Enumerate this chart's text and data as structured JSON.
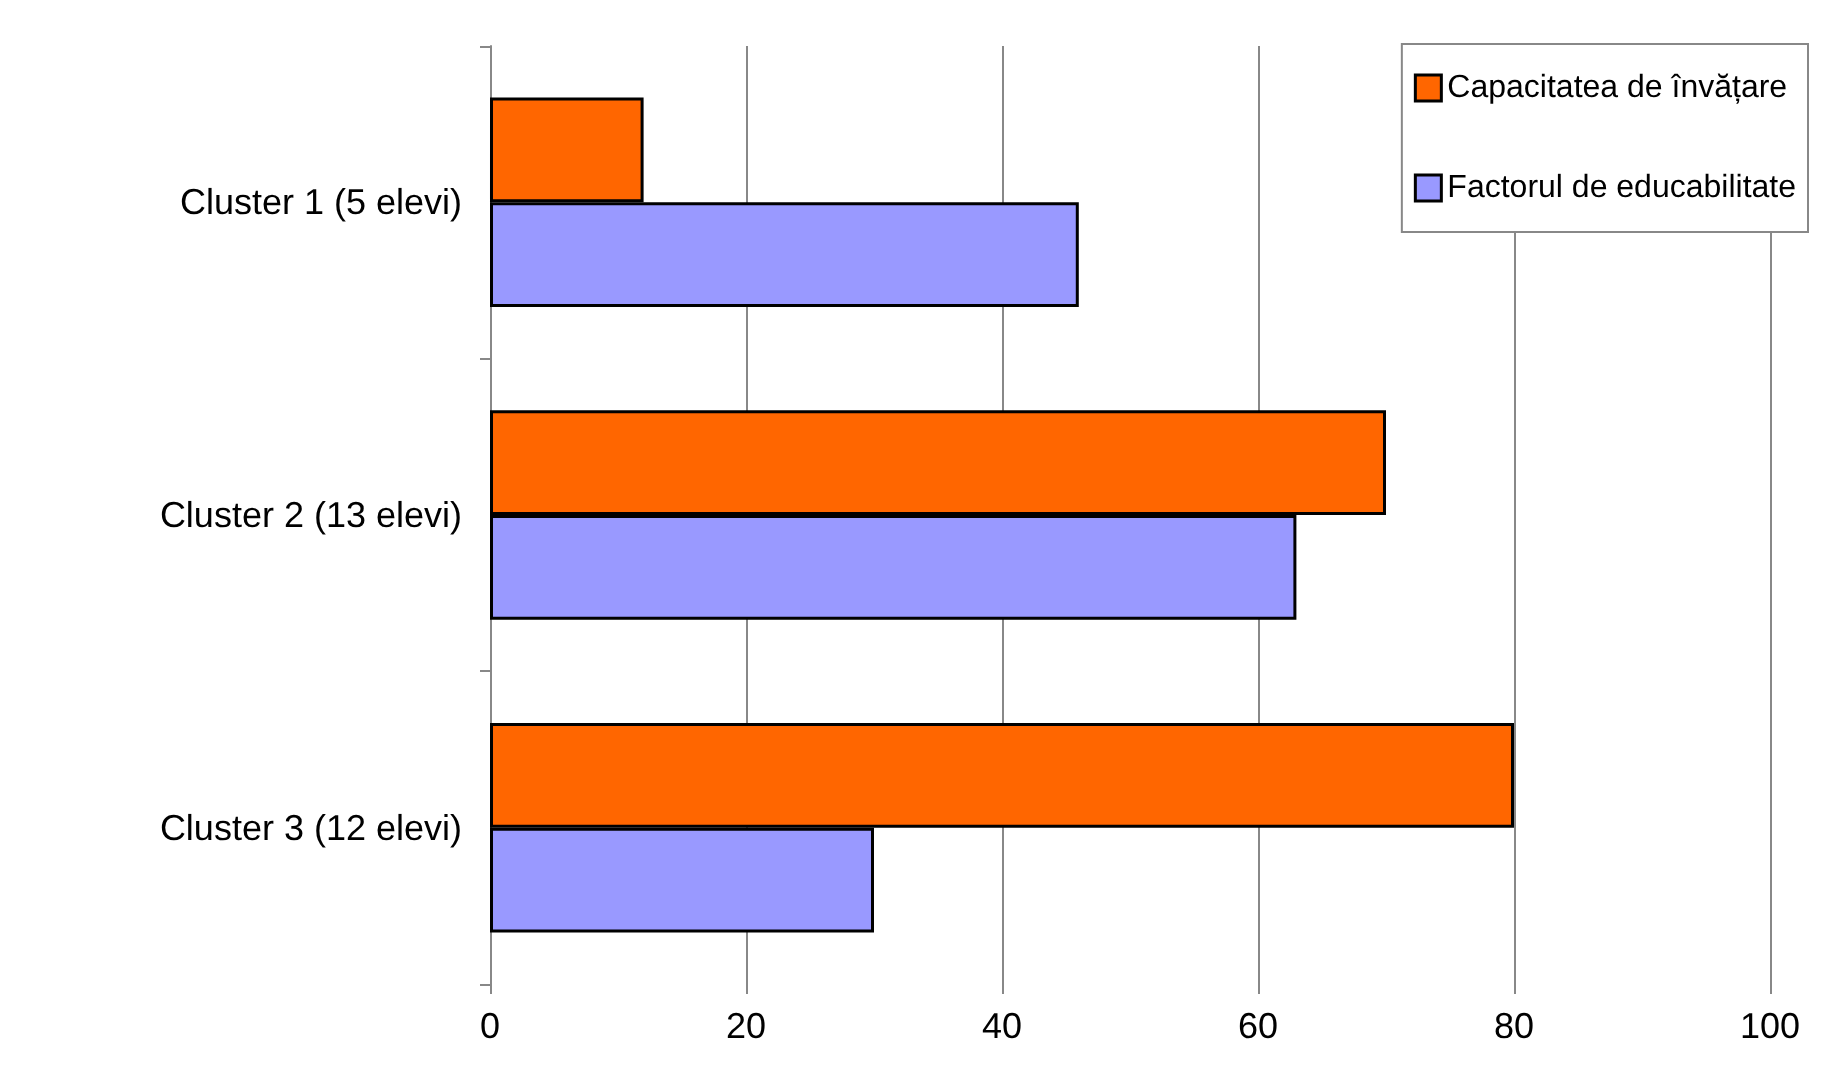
{
  "chart_data": {
    "type": "bar",
    "orientation": "horizontal",
    "categories": [
      "Cluster 1 (5 elevi)",
      "Cluster 2 (13 elevi)",
      "Cluster 3 (12 elevi)"
    ],
    "series": [
      {
        "name": "Capacitatea de învățare",
        "color": "#ff6600",
        "values": [
          12,
          70,
          80
        ]
      },
      {
        "name": "Factorul de educabilitate",
        "color": "#9999ff",
        "values": [
          46,
          63,
          30
        ]
      }
    ],
    "xlim": [
      0,
      100
    ],
    "xticks": [
      0,
      20,
      40,
      60,
      80,
      100
    ],
    "grid": "x",
    "legend": "top right"
  }
}
